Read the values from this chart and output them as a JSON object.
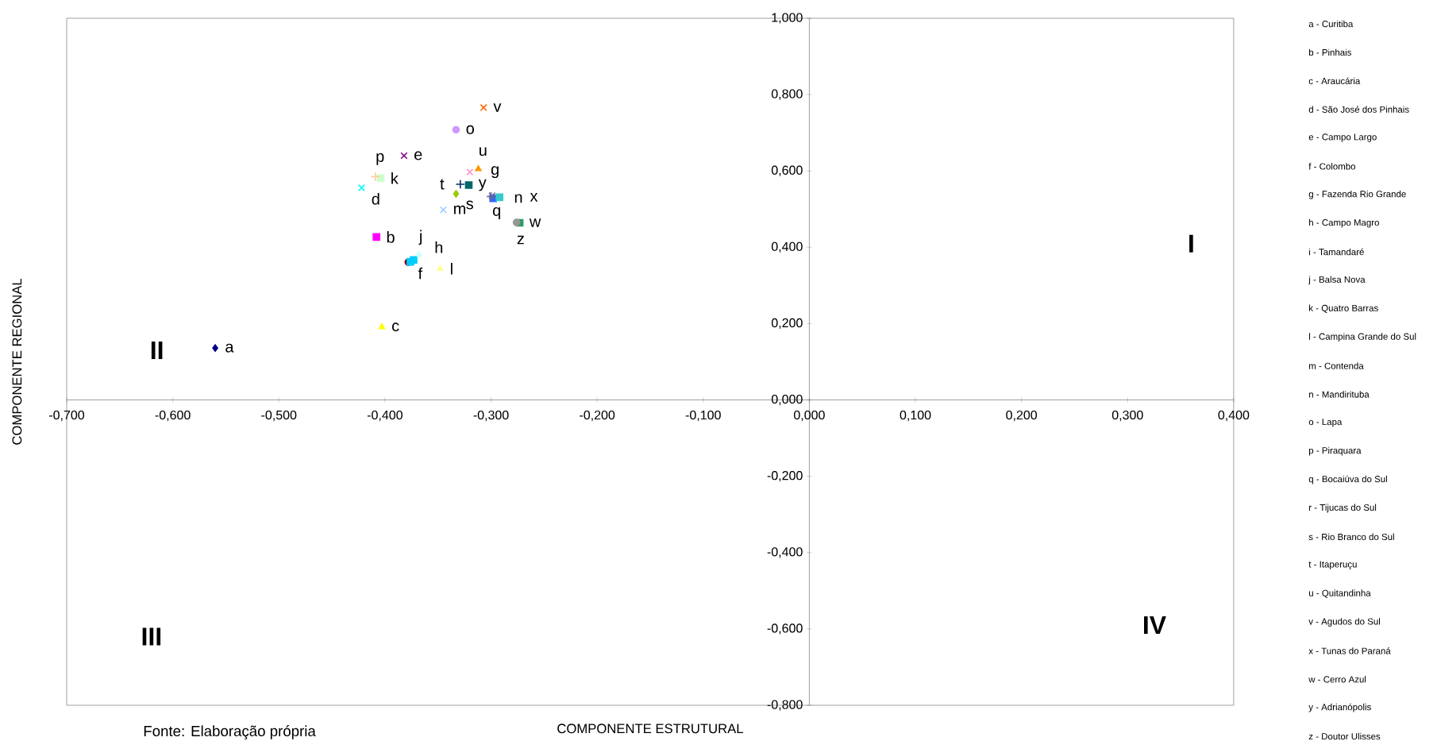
{
  "chart_data": {
    "type": "scatter",
    "xlabel": "COMPONENTE ESTRUTURAL",
    "ylabel": "COMPONENTE REGIONAL",
    "xlim": [
      -0.7,
      0.4
    ],
    "ylim": [
      -0.8,
      1.0
    ],
    "xticks": [
      {
        "value": -0.7,
        "label": "-0,700"
      },
      {
        "value": -0.6,
        "label": "-0,600"
      },
      {
        "value": -0.5,
        "label": "-0,500"
      },
      {
        "value": -0.4,
        "label": "-0,400"
      },
      {
        "value": -0.3,
        "label": "-0,300"
      },
      {
        "value": -0.2,
        "label": "-0,200"
      },
      {
        "value": -0.1,
        "label": "-0,100"
      },
      {
        "value": 0,
        "label": "0,000"
      },
      {
        "value": 0.1,
        "label": "0,100"
      },
      {
        "value": 0.2,
        "label": "0,200"
      },
      {
        "value": 0.3,
        "label": "0,300"
      },
      {
        "value": 0.4,
        "label": "0,400"
      }
    ],
    "yticks": [
      {
        "value": -0.8,
        "label": "-0,800"
      },
      {
        "value": -0.6,
        "label": "-0,600"
      },
      {
        "value": -0.4,
        "label": "-0,400"
      },
      {
        "value": -0.2,
        "label": "-0,200"
      },
      {
        "value": 0,
        "label": "0,000"
      },
      {
        "value": 0.2,
        "label": "0,200"
      },
      {
        "value": 0.4,
        "label": "0,400"
      },
      {
        "value": 0.6,
        "label": "0,600"
      },
      {
        "value": 0.8,
        "label": "0,800"
      },
      {
        "value": 1.0,
        "label": "1,000"
      }
    ],
    "grid": false,
    "series": [
      {
        "x": [
          -0.56
        ],
        "values": [
          0.136
        ],
        "color": "#000080",
        "marker": "diamond"
      },
      {
        "x": [
          -0.408
        ],
        "values": [
          0.427
        ],
        "color": "#ff00ff",
        "marker": "square"
      },
      {
        "x": [
          -0.403
        ],
        "values": [
          0.191
        ],
        "color": "#ffff00",
        "marker": "triangle"
      },
      {
        "x": [
          -0.422
        ],
        "values": [
          0.556
        ],
        "color": "#00ffff",
        "marker": "cross"
      },
      {
        "x": [
          -0.382
        ],
        "values": [
          0.64
        ],
        "color": "#800080",
        "marker": "cross"
      },
      {
        "x": [
          -0.378
        ],
        "values": [
          0.361
        ],
        "color": "#800000",
        "marker": "circle"
      },
      {
        "x": [
          -0.32
        ],
        "values": [
          0.597
        ],
        "color": "#ff99cc",
        "marker": "cross"
      },
      {
        "x": [
          -0.373
        ],
        "values": [
          0.367
        ],
        "color": "#00ccff",
        "marker": "square"
      },
      {
        "x": [
          -0.376
        ],
        "values": [
          0.362
        ],
        "color": "#00ccff",
        "marker": "square"
      },
      {
        "x": [
          -0.368
        ],
        "values": [
          0.38
        ],
        "color": "#ccffff",
        "marker": "diamond"
      },
      {
        "x": [
          -0.404
        ],
        "values": [
          0.581
        ],
        "color": "#ccffcc",
        "marker": "square"
      },
      {
        "x": [
          -0.348
        ],
        "values": [
          0.344
        ],
        "color": "#ffff99",
        "marker": "triangle"
      },
      {
        "x": [
          -0.345
        ],
        "values": [
          0.498
        ],
        "color": "#99ccff",
        "marker": "cross"
      },
      {
        "x": [
          -0.298
        ],
        "values": [
          0.528
        ],
        "color": "#3366ff",
        "marker": "square"
      },
      {
        "x": [
          -0.333
        ],
        "values": [
          0.708
        ],
        "color": "#cc99ff",
        "marker": "circle"
      },
      {
        "x": [
          -0.409
        ],
        "values": [
          0.585
        ],
        "color": "#ffcc99",
        "marker": "plus"
      },
      {
        "x": [
          -0.299
        ],
        "values": [
          0.535
        ],
        "color": "#666699",
        "marker": "cross"
      },
      {
        "x": [
          -0.3
        ],
        "values": [
          0.533
        ],
        "color": "#666699",
        "marker": "plus"
      },
      {
        "x": [
          -0.333
        ],
        "values": [
          0.54
        ],
        "color": "#99cc00",
        "marker": "diamond"
      },
      {
        "x": [
          -0.329
        ],
        "values": [
          0.565
        ],
        "color": "#003366",
        "marker": "plus"
      },
      {
        "x": [
          -0.312
        ],
        "values": [
          0.605
        ],
        "color": "#ff9900",
        "marker": "triangle"
      },
      {
        "x": [
          -0.307
        ],
        "values": [
          0.766
        ],
        "color": "#ff6600",
        "marker": "cross"
      },
      {
        "x": [
          -0.292
        ],
        "values": [
          0.531
        ],
        "color": "#33cccc",
        "marker": "square"
      },
      {
        "x": [
          -0.273
        ],
        "values": [
          0.464
        ],
        "color": "#339966",
        "marker": "square"
      },
      {
        "x": [
          -0.321
        ],
        "values": [
          0.563
        ],
        "color": "#006666",
        "marker": "square"
      },
      {
        "x": [
          -0.276
        ],
        "values": [
          0.465
        ],
        "color": "#969696",
        "marker": "circle"
      }
    ],
    "annotations": [
      {
        "text": "a",
        "x": -0.56,
        "y": 0.136
      },
      {
        "text": "b",
        "x": -0.408,
        "y": 0.427
      },
      {
        "text": "c",
        "x": -0.403,
        "y": 0.191
      },
      {
        "text": "d",
        "x": -0.422,
        "y": 0.556
      },
      {
        "text": "e",
        "x": -0.382,
        "y": 0.64
      },
      {
        "text": "f",
        "x": -0.378,
        "y": 0.361
      },
      {
        "text": "g",
        "x": -0.32,
        "y": 0.597
      },
      {
        "text": "h",
        "x": -0.373,
        "y": 0.367
      },
      {
        "text": "j",
        "x": -0.368,
        "y": 0.38
      },
      {
        "text": "k",
        "x": -0.404,
        "y": 0.581
      },
      {
        "text": "l",
        "x": -0.348,
        "y": 0.344
      },
      {
        "text": "m",
        "x": -0.345,
        "y": 0.498
      },
      {
        "text": "n",
        "x": -0.298,
        "y": 0.528
      },
      {
        "text": "o",
        "x": -0.333,
        "y": 0.708
      },
      {
        "text": "p",
        "x": -0.409,
        "y": 0.585
      },
      {
        "text": "q",
        "x": -0.299,
        "y": 0.535
      },
      {
        "text": "s",
        "x": -0.333,
        "y": 0.54
      },
      {
        "text": "t",
        "x": -0.329,
        "y": 0.565
      },
      {
        "text": "u",
        "x": -0.312,
        "y": 0.605
      },
      {
        "text": "v",
        "x": -0.307,
        "y": 0.766
      },
      {
        "text": "x",
        "x": -0.292,
        "y": 0.531
      },
      {
        "text": "w",
        "x": -0.273,
        "y": 0.464
      },
      {
        "text": "y",
        "x": -0.321,
        "y": 0.563
      },
      {
        "text": "z",
        "x": -0.276,
        "y": 0.465
      },
      "I",
      "II",
      "III",
      "IV",
      "a - Curitiba",
      "b - Pinhais",
      "c - Araucária",
      "d - São José dos Pinhais",
      "e - Campo Largo",
      "f - Colombo",
      "g - Fazenda Rio Grande",
      "h - Campo Magro",
      "i - Tamandaré",
      "j - Balsa Nova",
      "k - Quatro Barras",
      "l - Campina Grande do Sul",
      "m - Contenda",
      "n - Mandirituba",
      "o - Lapa",
      "p - Piraquara",
      "q - Bocaiúva do Sul",
      "r - Tijucas do Sul",
      "s - Rio Branco do Sul",
      "t - Itaperuçu",
      "u - Quitandinha",
      "v - Agudos do Sul",
      "x - Tunas do Paraná",
      "w - Cerro Azul",
      "y - Adrianópolis",
      "z - Doutor Ulisses",
      "Fonte: Elaboração própria"
    ]
  }
}
